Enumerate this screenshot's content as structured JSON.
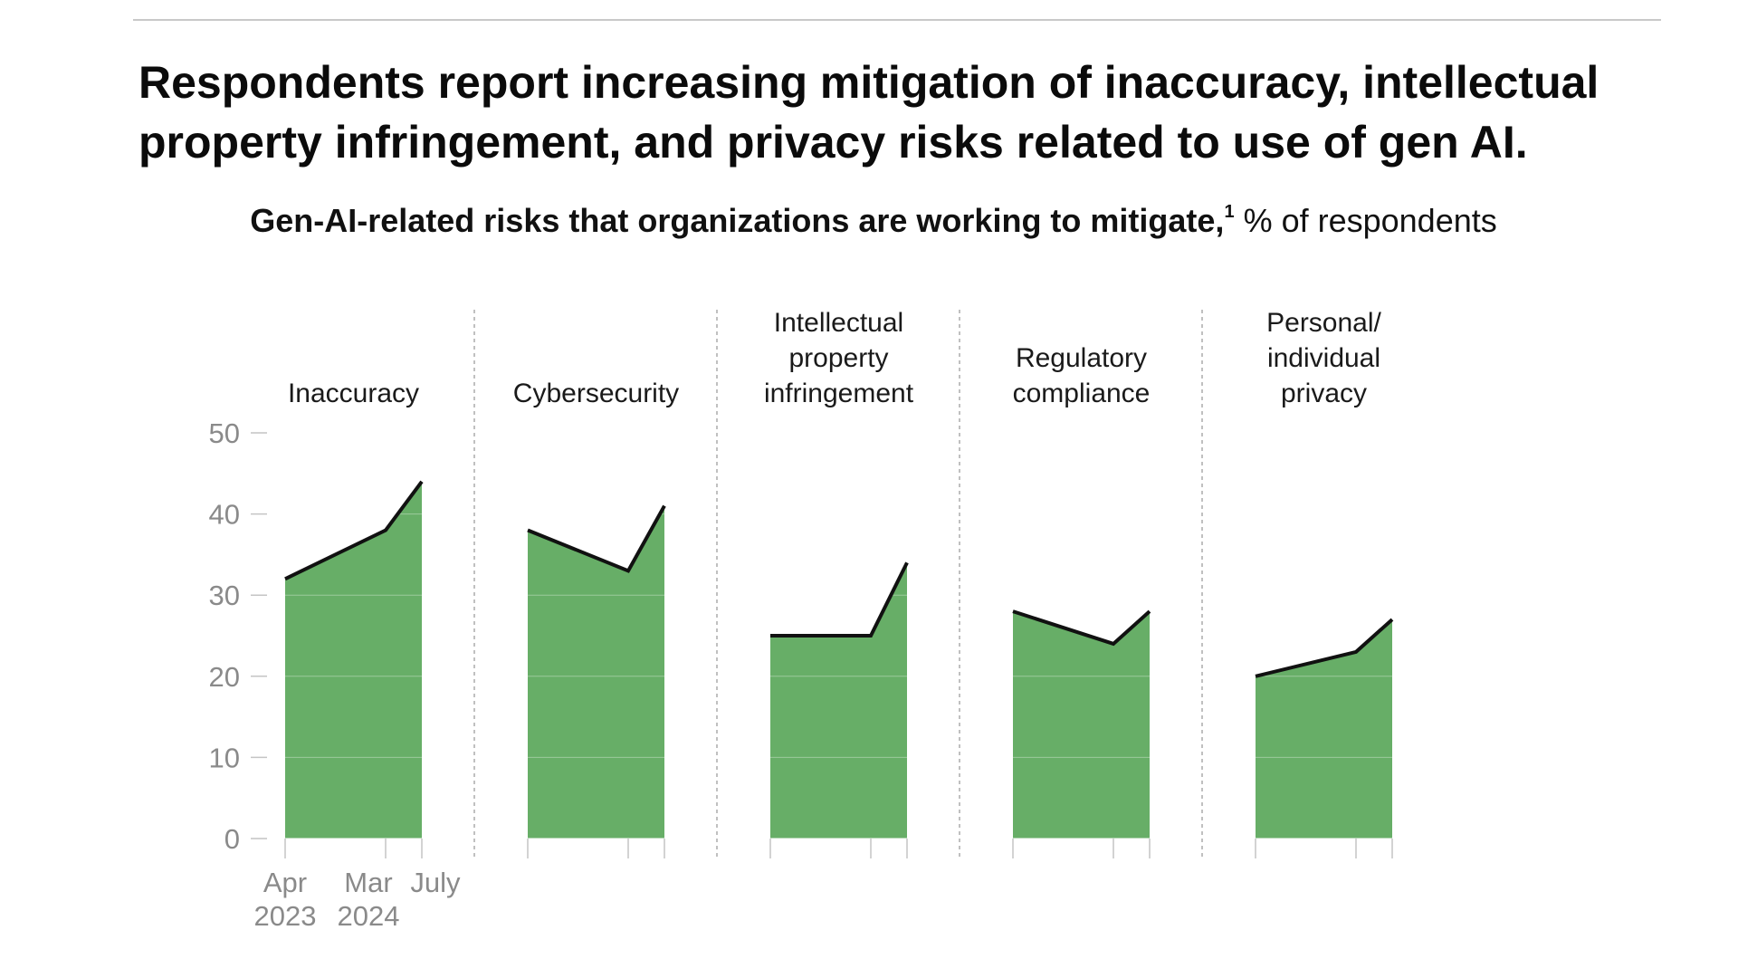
{
  "title": "Respondents report increasing mitigation of inaccuracy, intellectual property infringement, and privacy risks related to use of gen AI.",
  "subtitle": {
    "bold": "Gen-AI-related risks that organizations are working to mitigate,",
    "footnote": "1",
    "regular": " % of respondents"
  },
  "colors": {
    "area": "#67ae67",
    "line": "#111111",
    "divider": "#b0b0b0",
    "tick": "#c4c4c4",
    "axis_text": "#8a8a8a"
  },
  "chart_data": {
    "type": "area",
    "title": "Gen-AI-related risks that organizations are working to mitigate, % of respondents",
    "ylabel": "% of respondents",
    "ylim": [
      0,
      50
    ],
    "yticks": [
      0,
      10,
      20,
      30,
      40,
      50
    ],
    "x": [
      "Apr 2023",
      "Mar 2024",
      "July 2024"
    ],
    "x_tick_labels": [
      {
        "line1": "Apr",
        "line2": "2023"
      },
      {
        "line1": "Mar",
        "line2": "2024"
      },
      {
        "line1": "July",
        "line2": ""
      }
    ],
    "series": [
      {
        "name": "Inaccuracy",
        "title_lines": [
          "Inaccuracy"
        ],
        "values": [
          32,
          38,
          44
        ]
      },
      {
        "name": "Cybersecurity",
        "title_lines": [
          "Cybersecurity"
        ],
        "values": [
          38,
          33,
          41
        ]
      },
      {
        "name": "Intellectual property infringement",
        "title_lines": [
          "Intellectual",
          "property",
          "infringement"
        ],
        "values": [
          25,
          25,
          34
        ]
      },
      {
        "name": "Regulatory compliance",
        "title_lines": [
          "Regulatory",
          "compliance"
        ],
        "values": [
          28,
          24,
          28
        ]
      },
      {
        "name": "Personal/individual privacy",
        "title_lines": [
          "Personal/",
          "individual",
          "privacy"
        ],
        "values": [
          20,
          23,
          27
        ]
      }
    ]
  }
}
